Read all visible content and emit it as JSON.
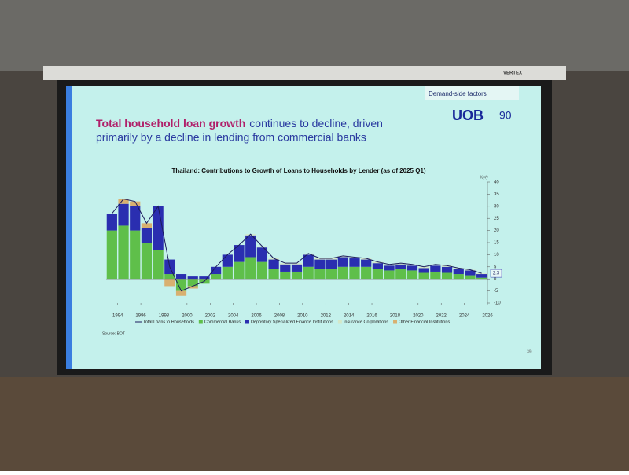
{
  "screen_brand": "VERTEX",
  "slide": {
    "section": "Demand-side factors",
    "logo": "UOB",
    "logo_badge": "90",
    "headline": {
      "highlight": "Total household loan growth",
      "rest": "continues to decline, driven",
      "line2": "primarily by a decline in lending from commercial banks"
    },
    "source": "Source: BOT",
    "page": "39"
  },
  "chart_data": {
    "type": "bar",
    "stacked": true,
    "title": "Thailand: Contributions to Growth of Loans to Households by Lender (as of 2025 Q1)",
    "y_unit": "%y/y",
    "x": [
      1993,
      1994,
      1995,
      1996,
      1997,
      1998,
      1999,
      2000,
      2001,
      2002,
      2003,
      2004,
      2005,
      2006,
      2007,
      2008,
      2009,
      2010,
      2011,
      2012,
      2013,
      2014,
      2015,
      2016,
      2017,
      2018,
      2019,
      2020,
      2021,
      2022,
      2023,
      2024,
      2025
    ],
    "xlim": [
      1993,
      2026
    ],
    "xticks": [
      1994,
      1996,
      1998,
      2000,
      2002,
      2004,
      2006,
      2008,
      2010,
      2012,
      2014,
      2016,
      2018,
      2020,
      2022,
      2024,
      2026
    ],
    "ylim": [
      -10,
      40
    ],
    "yticks": [
      -10,
      -5,
      0,
      5,
      10,
      15,
      20,
      25,
      30,
      35,
      40
    ],
    "line": {
      "name": "Total Loans to Households",
      "color": "#1c1c5c",
      "values": [
        27,
        33,
        32,
        23,
        30,
        5,
        -5,
        -3,
        -1,
        5,
        10,
        14,
        18.5,
        13.5,
        8.5,
        6.5,
        6.5,
        10.5,
        8.5,
        8.5,
        9.5,
        9,
        8.5,
        7,
        6,
        6.5,
        6,
        5,
        6,
        5.5,
        4.5,
        3.8,
        2.3
      ]
    },
    "series": [
      {
        "name": "Commercial Banks",
        "color": "#5fbf4a",
        "values": [
          20,
          22,
          20,
          15,
          12,
          2,
          -5,
          -3,
          -2,
          2,
          5,
          7,
          9,
          7,
          4,
          3,
          3,
          5,
          4,
          4,
          5,
          5,
          5,
          4,
          3.5,
          4,
          3.5,
          2.5,
          3,
          2.5,
          2,
          1.5,
          0.5
        ]
      },
      {
        "name": "Depository Specialized Finance Institutions",
        "color": "#2a2eb0",
        "values": [
          7,
          9,
          10,
          6,
          18,
          6,
          2,
          1,
          1,
          3,
          5,
          7,
          9,
          6,
          4,
          3,
          3,
          5,
          4,
          4,
          4,
          3.5,
          3,
          2.5,
          2,
          2,
          2,
          2,
          2.5,
          2.5,
          2,
          2,
          1.5
        ]
      },
      {
        "name": "Insurance Corporations",
        "color": "#d5e8c8",
        "values": [
          0,
          0,
          0,
          0,
          0,
          0,
          0,
          0,
          0,
          0,
          0,
          0,
          0.5,
          0.5,
          0.5,
          0.5,
          0.5,
          0.5,
          0.5,
          0.5,
          0.5,
          0.5,
          0.5,
          0.5,
          0.5,
          0.5,
          0.5,
          0.5,
          0.5,
          0.5,
          0.5,
          0.3,
          0.3
        ]
      },
      {
        "name": "Other Financial Institutions",
        "color": "#d8b070",
        "values": [
          0,
          2,
          2,
          2,
          0,
          -3,
          -2,
          -1,
          0,
          0,
          0,
          0,
          0,
          0,
          0,
          0,
          0,
          0,
          0,
          0,
          0,
          0,
          0,
          0,
          0,
          0,
          0,
          0,
          0,
          0,
          0,
          0,
          0
        ]
      }
    ],
    "value_label_index": 32
  }
}
